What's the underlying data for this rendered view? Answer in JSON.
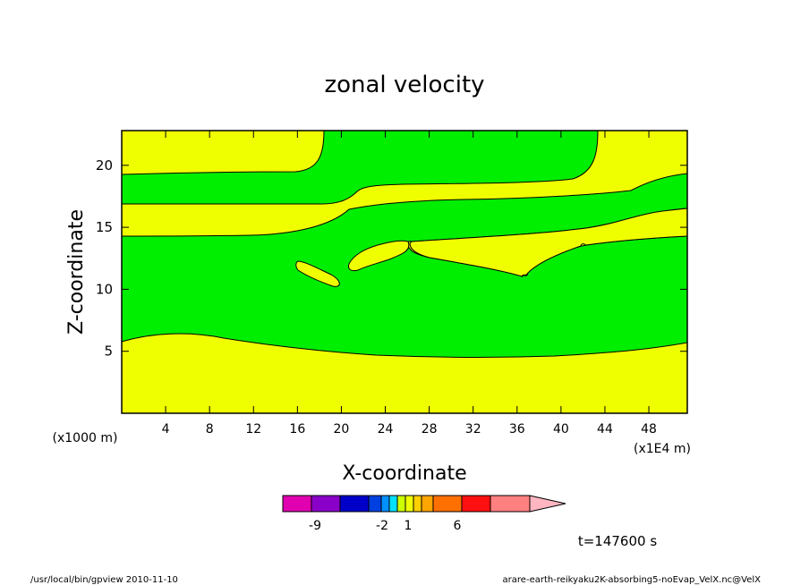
{
  "chart_data": {
    "type": "contour",
    "title": "zonal velocity",
    "xlabel": "X-coordinate",
    "ylabel": "Z-coordinate",
    "x_unit_left": "(x1000 m)",
    "x_unit_right": "(x1E4 m)",
    "xlim": [
      0,
      51.5
    ],
    "ylim": [
      0,
      22.8
    ],
    "xticks": [
      4,
      8,
      12,
      16,
      20,
      24,
      28,
      32,
      36,
      40,
      44,
      48
    ],
    "yticks": [
      5,
      10,
      15,
      20
    ],
    "contour_fill_colors": {
      "positive_weak": "#f0ff00",
      "positive_moderate": "#00ee00"
    },
    "regions": [
      {
        "color": "yellow",
        "description": "band near surface",
        "z_range": [
          0,
          6
        ]
      },
      {
        "color": "green",
        "description": "middle band",
        "z_range": [
          5,
          14.5
        ]
      },
      {
        "color": "yellow",
        "description": "upper band",
        "z_range": [
          14.5,
          17.5
        ]
      },
      {
        "color": "green",
        "description": "upper green band",
        "z_range": [
          17,
          19.5
        ]
      },
      {
        "color": "yellow",
        "description": "top band",
        "z_range": [
          19.5,
          22.8
        ]
      }
    ],
    "colorbar": {
      "colors": [
        "#e000b0",
        "#8a00c8",
        "#0000c8",
        "#0040e0",
        "#0090ff",
        "#00e0ff",
        "#ccff00",
        "#f0ff00",
        "#ffd000",
        "#ffa500",
        "#ff7000",
        "#ff1010",
        "#ff8080",
        "#ffb6c1"
      ],
      "labels": [
        "-9",
        "-2",
        "1",
        "6"
      ]
    },
    "time_label": "t=147600 s"
  },
  "footer": {
    "left": "/usr/local/bin/gpview  2010-11-10",
    "right": "arare-earth-reikyaku2K-absorbing5-noEvap_VelX.nc@VelX"
  }
}
